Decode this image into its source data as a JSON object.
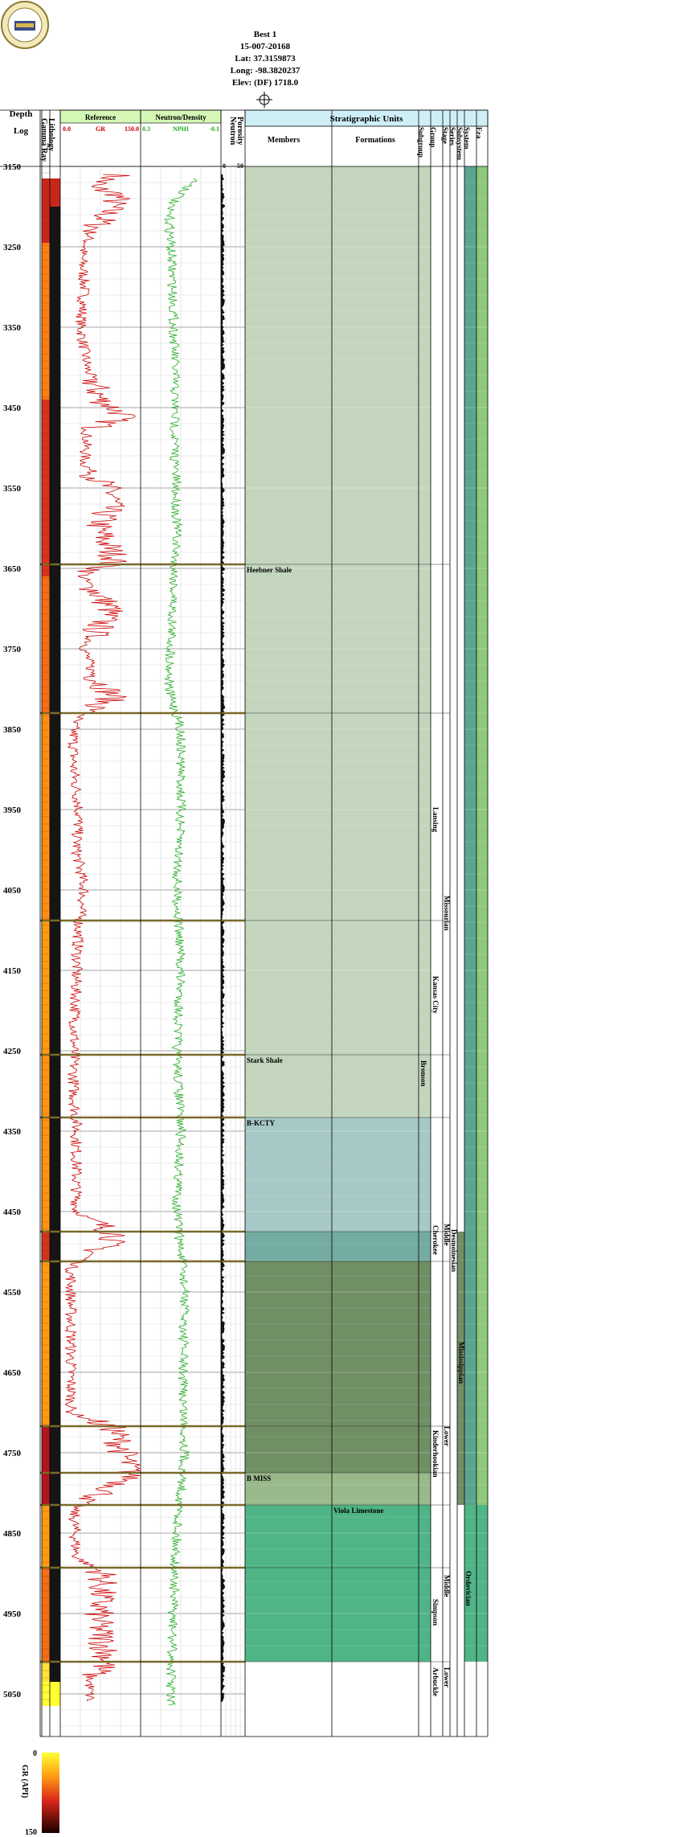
{
  "header": {
    "well_name": "Best 1",
    "api": "15-007-20168",
    "lat": "Lat: 37.3159873",
    "long": "Long: -98.3820237",
    "elev": "Elev: (DF) 1718.0"
  },
  "columns": {
    "depth": "Depth",
    "log": "Log",
    "gamma_ray": "Gamma Ray",
    "lithology": "Lithology",
    "reference": "Reference",
    "gr_min": "0.0",
    "gr_label": "GR",
    "gr_max": "150.0",
    "neutron_density": "Neutron/Density",
    "nphi_min": "0.3",
    "nphi_label": "NPHI",
    "nphi_max": "-0.1",
    "porosity": "Porosity",
    "neutron": "Neutron",
    "por_min": "0",
    "por_max": "50",
    "strat_units": "Stratigraphic Units",
    "members": "Members",
    "formations": "Formations",
    "strat_cols": [
      "Subgroup",
      "Group",
      "Stage",
      "Series",
      "Subsystem",
      "System",
      "Era"
    ]
  },
  "legend": {
    "title": "GR (API)",
    "min": "0",
    "max": "150"
  },
  "colors": {
    "pennsylvanian": "#c3d6bd",
    "cherokee_band": "#a6c8c6",
    "middle_penn": "#8fbdb5",
    "mississippian": "#708f64",
    "lower_miss": "#9ab98a",
    "ordovician": "#4fb486",
    "system_col": "#5aa592",
    "era_col": "#8ec87a",
    "gr_curve": "#cc0000",
    "nphi_curve": "#22aa22",
    "header_fill": "#d4f7b6",
    "strat_header_fill": "#cfeff7",
    "top_line": "#7a6a2a"
  },
  "chart_data": {
    "type": "well-log",
    "depth_range": [
      3150,
      5100
    ],
    "depth_ticks": [
      3150,
      3250,
      3350,
      3450,
      3550,
      3650,
      3750,
      3850,
      3950,
      4050,
      4150,
      4250,
      4350,
      4450,
      4550,
      4650,
      4750,
      4850,
      4950,
      5050
    ],
    "gr_range": [
      0,
      150
    ],
    "nphi_range": [
      0.3,
      -0.1
    ],
    "porosity_range": [
      0,
      50
    ],
    "tops": [
      {
        "depth": 3645,
        "name": "Heebner Shale"
      },
      {
        "depth": 3830,
        "name": ""
      },
      {
        "depth": 4088,
        "name": ""
      },
      {
        "depth": 4255,
        "name": "Stark Shale"
      },
      {
        "depth": 4333,
        "name": "B-KCTY"
      },
      {
        "depth": 4475,
        "name": ""
      },
      {
        "depth": 4512,
        "name": ""
      },
      {
        "depth": 4717,
        "name": ""
      },
      {
        "depth": 4775,
        "name": "B MISS"
      },
      {
        "depth": 4815,
        "name": ""
      },
      {
        "depth": 4893,
        "name": ""
      },
      {
        "depth": 5010,
        "name": ""
      }
    ],
    "formation_labels": [
      {
        "depth": 4815,
        "name": "Viola Limestone"
      }
    ],
    "strat_labels": [
      {
        "col": "group",
        "depth": 3975,
        "text": "Lansing"
      },
      {
        "col": "stage",
        "depth": 4085,
        "text": "Missourian"
      },
      {
        "col": "group",
        "depth": 4185,
        "text": "Kansas City"
      },
      {
        "col": "subgroup",
        "depth": 4290,
        "text": "Bronson"
      },
      {
        "col": "stage",
        "depth": 4493,
        "text": "Middle"
      },
      {
        "col": "series",
        "depth": 4500,
        "text": "Desmoinesian"
      },
      {
        "col": "group",
        "depth": 4495,
        "text": "Cherokee"
      },
      {
        "col": "subsystem",
        "depth": 4640,
        "text": "Mississippian"
      },
      {
        "col": "stage",
        "depth": 4745,
        "text": "Lower"
      },
      {
        "col": "group",
        "depth": 4750,
        "text": "Kinderhookian"
      },
      {
        "col": "system",
        "depth": 4925,
        "text": "Ordovician"
      },
      {
        "col": "stage",
        "depth": 4930,
        "text": "Middle"
      },
      {
        "col": "group",
        "depth": 4960,
        "text": "Simpson"
      },
      {
        "col": "stage",
        "depth": 5045,
        "text": "Lower"
      },
      {
        "col": "group",
        "depth": 5045,
        "text": "Arbuckle"
      }
    ],
    "gr_profile": [
      [
        3160,
        110
      ],
      [
        3175,
        55
      ],
      [
        3185,
        110
      ],
      [
        3200,
        95
      ],
      [
        3215,
        80
      ],
      [
        3235,
        55
      ],
      [
        3260,
        40
      ],
      [
        3300,
        45
      ],
      [
        3350,
        38
      ],
      [
        3400,
        50
      ],
      [
        3440,
        75
      ],
      [
        3460,
        120
      ],
      [
        3480,
        50
      ],
      [
        3520,
        45
      ],
      [
        3560,
        100
      ],
      [
        3600,
        70
      ],
      [
        3640,
        105
      ],
      [
        3660,
        40
      ],
      [
        3700,
        95
      ],
      [
        3750,
        45
      ],
      [
        3780,
        60
      ],
      [
        3810,
        100
      ],
      [
        3840,
        25
      ],
      [
        3900,
        25
      ],
      [
        3950,
        35
      ],
      [
        4000,
        30
      ],
      [
        4050,
        45
      ],
      [
        4090,
        35
      ],
      [
        4150,
        30
      ],
      [
        4200,
        28
      ],
      [
        4250,
        25
      ],
      [
        4300,
        25
      ],
      [
        4340,
        30
      ],
      [
        4400,
        30
      ],
      [
        4450,
        30
      ],
      [
        4480,
        110
      ],
      [
        4520,
        20
      ],
      [
        4600,
        20
      ],
      [
        4700,
        20
      ],
      [
        4720,
        100
      ],
      [
        4780,
        135
      ],
      [
        4820,
        25
      ],
      [
        4880,
        30
      ],
      [
        4900,
        80
      ],
      [
        4960,
        70
      ],
      [
        5010,
        90
      ],
      [
        5030,
        55
      ]
    ],
    "nphi_profile": [
      [
        3165,
        0.02
      ],
      [
        3200,
        0.16
      ],
      [
        3250,
        0.15
      ],
      [
        3300,
        0.14
      ],
      [
        3400,
        0.13
      ],
      [
        3500,
        0.13
      ],
      [
        3600,
        0.12
      ],
      [
        3700,
        0.14
      ],
      [
        3800,
        0.16
      ],
      [
        3850,
        0.1
      ],
      [
        3950,
        0.1
      ],
      [
        4050,
        0.12
      ],
      [
        4150,
        0.1
      ],
      [
        4250,
        0.12
      ],
      [
        4350,
        0.1
      ],
      [
        4450,
        0.12
      ],
      [
        4550,
        0.08
      ],
      [
        4650,
        0.09
      ],
      [
        4750,
        0.08
      ],
      [
        4850,
        0.12
      ],
      [
        4950,
        0.14
      ],
      [
        5050,
        0.15
      ]
    ],
    "lithology_bands": [
      {
        "from": 3150,
        "to": 3165,
        "color": "#ffffff"
      },
      {
        "from": 3165,
        "to": 3245,
        "color": "#c9261b"
      },
      {
        "from": 3245,
        "to": 3440,
        "color": "#ff7f13"
      },
      {
        "from": 3440,
        "to": 3660,
        "color": "#d93319"
      },
      {
        "from": 3660,
        "to": 3830,
        "color": "#f66d15"
      },
      {
        "from": 3830,
        "to": 4088,
        "color": "#ff8e12"
      },
      {
        "from": 4088,
        "to": 4255,
        "color": "#ff9b12"
      },
      {
        "from": 4255,
        "to": 4475,
        "color": "#ff9412"
      },
      {
        "from": 4475,
        "to": 4512,
        "color": "#d2351a"
      },
      {
        "from": 4512,
        "to": 4717,
        "color": "#ff9a12"
      },
      {
        "from": 4717,
        "to": 4815,
        "color": "#b3151f"
      },
      {
        "from": 4815,
        "to": 4893,
        "color": "#ff9b12"
      },
      {
        "from": 4893,
        "to": 5010,
        "color": "#f46e15"
      },
      {
        "from": 5010,
        "to": 5035,
        "color": "#fde23a"
      },
      {
        "from": 5035,
        "to": 5065,
        "color": "#ffff33"
      }
    ],
    "unit_bands": [
      {
        "from": 3150,
        "to": 4333,
        "color": "#c3d6bd"
      },
      {
        "from": 4333,
        "to": 4475,
        "color": "#a6c8c6"
      },
      {
        "from": 4475,
        "to": 4512,
        "color": "#74aba2"
      },
      {
        "from": 4512,
        "to": 4775,
        "color": "#708f64"
      },
      {
        "from": 4775,
        "to": 4815,
        "color": "#9ab98a"
      },
      {
        "from": 4815,
        "to": 5010,
        "color": "#4fb486"
      }
    ]
  }
}
